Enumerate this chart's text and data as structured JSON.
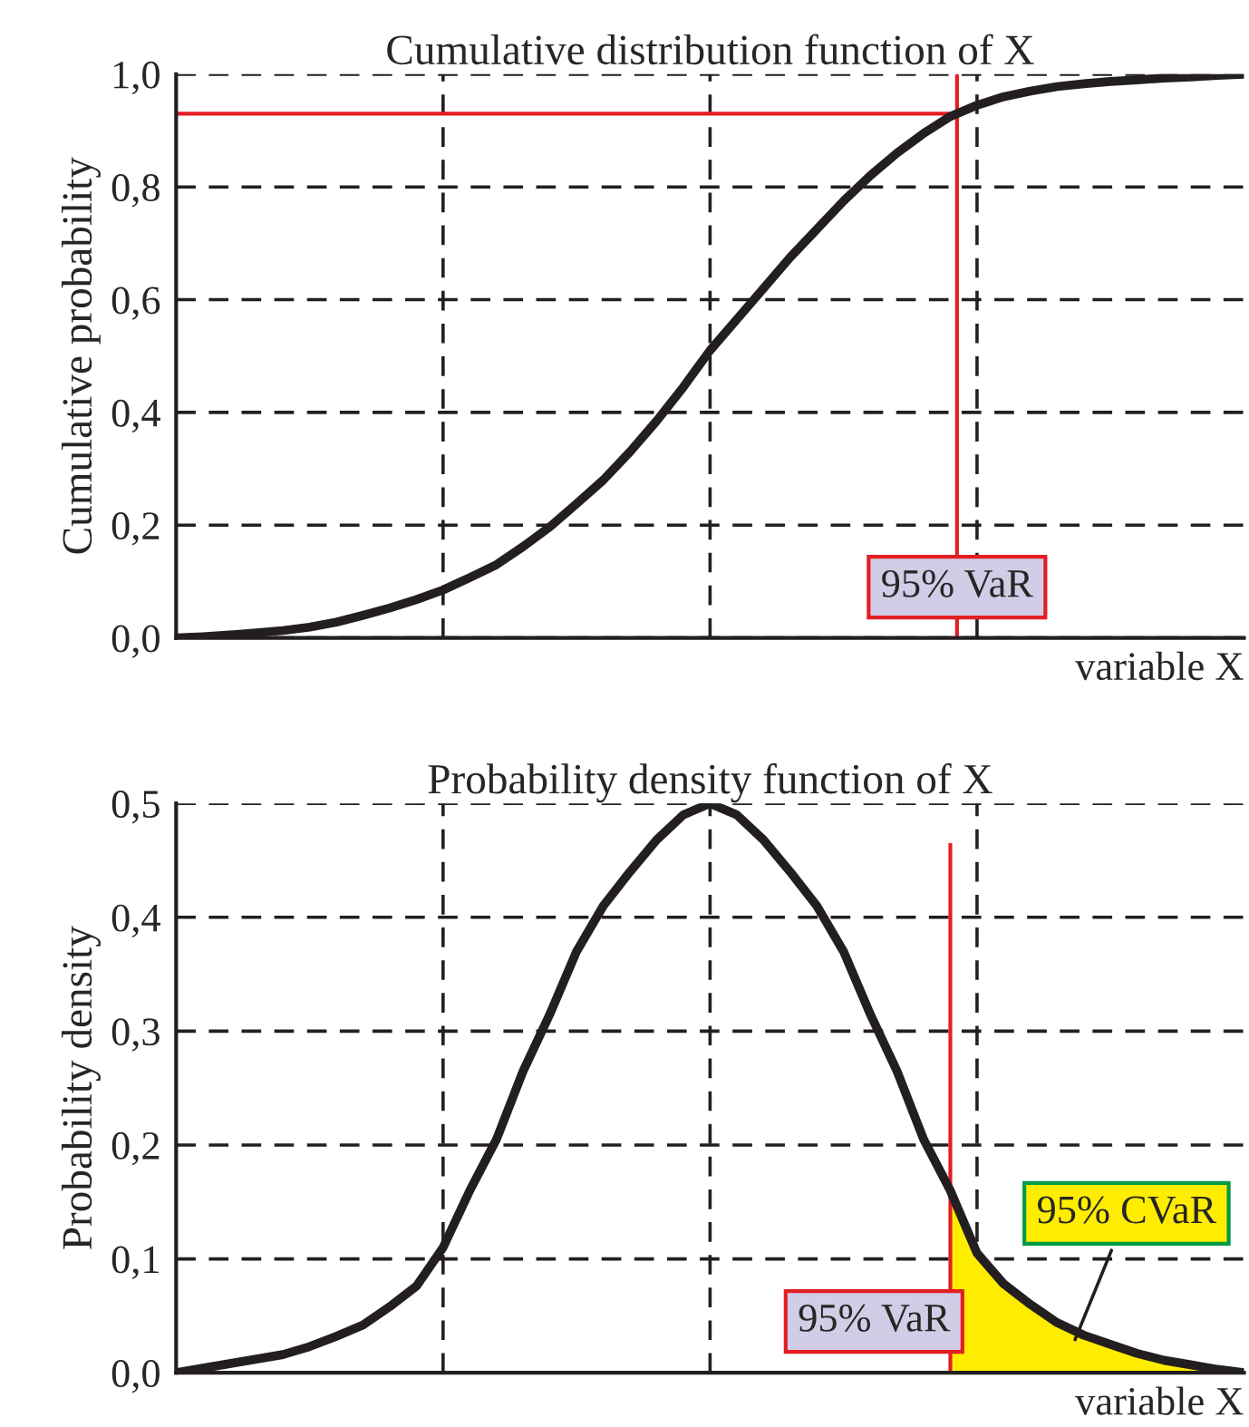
{
  "chart_data": [
    {
      "type": "line",
      "title": "Cumulative distribution function of X",
      "xlabel": "variable X",
      "ylabel": "Cumulative probability",
      "categories": [
        null,
        null,
        null,
        null,
        null,
        null,
        null,
        null,
        null,
        null,
        null,
        null,
        null,
        null,
        null,
        null,
        null,
        null,
        null,
        null,
        null,
        null,
        null,
        null,
        null,
        null,
        null,
        null,
        null,
        null,
        null,
        null,
        null,
        null,
        null,
        null,
        null,
        null,
        null,
        null,
        null
      ],
      "series": [
        {
          "color": "#231f20",
          "values": [
            0.0,
            0.002,
            0.005,
            0.009,
            0.013,
            0.019,
            0.028,
            0.04,
            0.053,
            0.068,
            0.085,
            0.107,
            0.13,
            0.162,
            0.197,
            0.238,
            0.28,
            0.33,
            0.385,
            0.445,
            0.51,
            0.565,
            0.62,
            0.675,
            0.725,
            0.775,
            0.82,
            0.86,
            0.895,
            0.925,
            0.945,
            0.96,
            0.97,
            0.978,
            0.983,
            0.987,
            0.99,
            0.993,
            0.995,
            0.998,
            1.0
          ]
        }
      ],
      "ylim": [
        0,
        1
      ],
      "yticks": [
        {
          "value": 0,
          "label": "0,0"
        },
        {
          "value": 0.2,
          "label": "0,2"
        },
        {
          "value": 0.4,
          "label": "0,4"
        },
        {
          "value": 0.6,
          "label": "0,6"
        },
        {
          "value": 0.8,
          "label": "0,8"
        },
        {
          "value": 1,
          "label": "1,0"
        }
      ],
      "ref_lines": [
        {
          "axis": "y",
          "value": 0.93,
          "color": "#e31e24"
        }
      ],
      "annotations": [
        "95% VaR"
      ],
      "grid": true,
      "line_style": "solid",
      "marker": "none"
    },
    {
      "type": "line",
      "title": "Probability density function of X",
      "xlabel": "variable X",
      "ylabel": "Probability density",
      "categories": [
        null,
        null,
        null,
        null,
        null,
        null,
        null,
        null,
        null,
        null,
        null,
        null,
        null,
        null,
        null,
        null,
        null,
        null,
        null,
        null,
        null,
        null,
        null,
        null,
        null,
        null,
        null,
        null,
        null,
        null,
        null,
        null,
        null,
        null,
        null,
        null,
        null,
        null,
        null,
        null,
        null
      ],
      "series": [
        {
          "color": "#231f20",
          "values": [
            0.0,
            0.004,
            0.008,
            0.012,
            0.016,
            0.023,
            0.032,
            0.042,
            0.058,
            0.076,
            0.11,
            0.16,
            0.205,
            0.265,
            0.315,
            0.37,
            0.41,
            0.44,
            0.468,
            0.49,
            0.5,
            0.49,
            0.468,
            0.44,
            0.41,
            0.37,
            0.315,
            0.265,
            0.205,
            0.16,
            0.105,
            0.078,
            0.06,
            0.044,
            0.033,
            0.025,
            0.017,
            0.011,
            0.007,
            0.003,
            0.0
          ]
        },
        {
          "type": "area",
          "color": "#ffed00",
          "values": [
            null,
            null,
            null,
            null,
            null,
            null,
            null,
            null,
            null,
            null,
            null,
            null,
            null,
            null,
            null,
            null,
            null,
            null,
            null,
            null,
            null,
            null,
            null,
            null,
            null,
            null,
            null,
            null,
            null,
            0.16,
            0.105,
            0.078,
            0.06,
            0.044,
            0.033,
            0.025,
            0.017,
            0.011,
            0.007,
            0.003,
            0.0
          ]
        }
      ],
      "ylim": [
        0,
        0.5
      ],
      "yticks": [
        {
          "value": 0,
          "label": "0,0"
        },
        {
          "value": 0.1,
          "label": "0,1"
        },
        {
          "value": 0.2,
          "label": "0,2"
        },
        {
          "value": 0.3,
          "label": "0,3"
        },
        {
          "value": 0.4,
          "label": "0,4"
        },
        {
          "value": 0.5,
          "label": "0,5"
        }
      ],
      "annotations": [
        "95% VaR",
        "95% CVaR"
      ],
      "grid": true,
      "line_style": "solid",
      "marker": "none"
    }
  ]
}
